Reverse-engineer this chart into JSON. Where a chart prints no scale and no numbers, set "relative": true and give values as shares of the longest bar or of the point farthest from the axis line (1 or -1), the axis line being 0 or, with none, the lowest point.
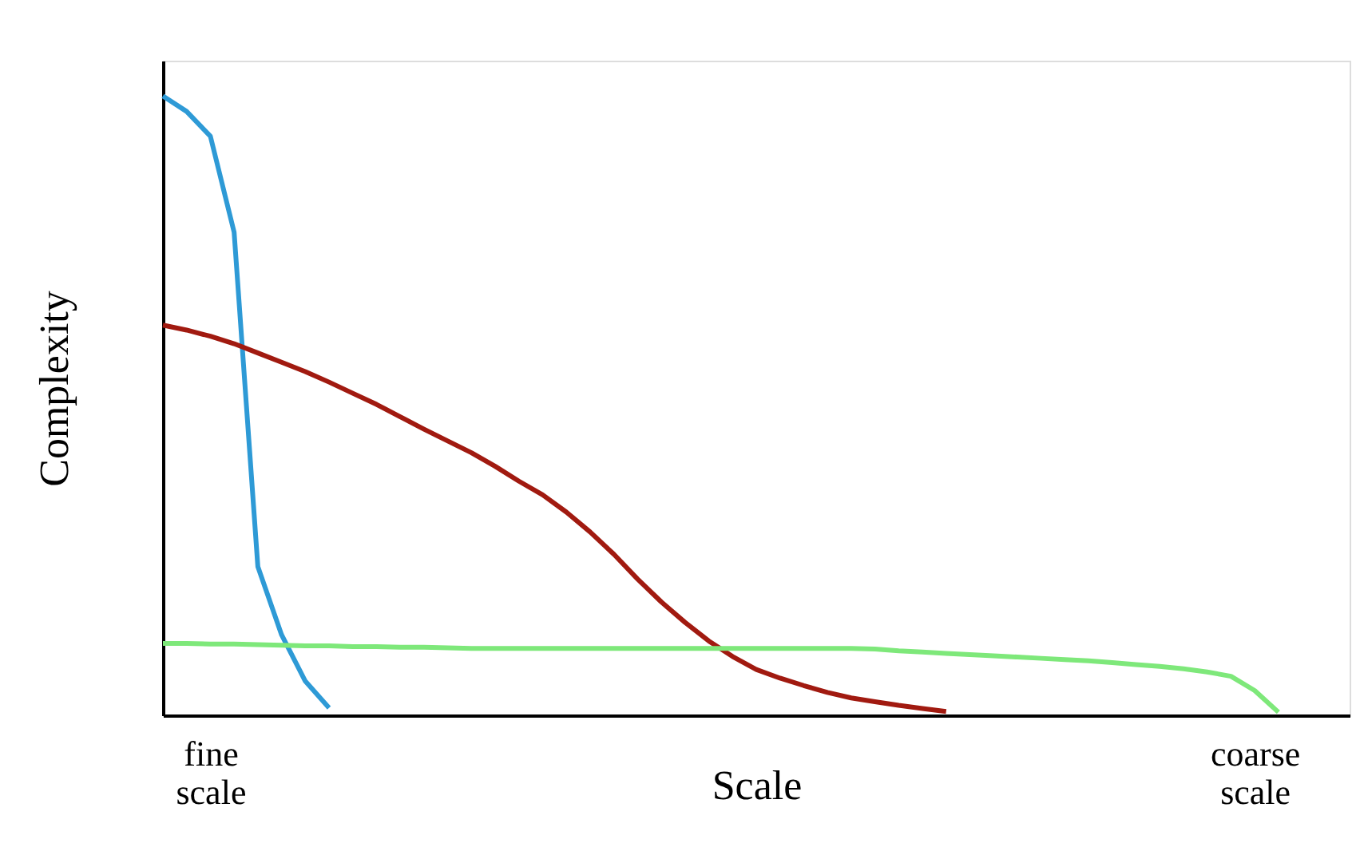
{
  "chart_data": {
    "type": "line",
    "relative": true,
    "xlabel": "Scale",
    "ylabel": "Complexity",
    "legend": false,
    "grid": false,
    "marker": "none",
    "line_style": "solid",
    "categories": [
      null,
      null,
      "fine scale",
      null,
      null,
      null,
      null,
      null,
      null,
      null,
      null,
      null,
      null,
      null,
      null,
      null,
      null,
      null,
      null,
      null,
      null,
      null,
      null,
      null,
      null,
      null,
      null,
      null,
      null,
      null,
      null,
      null,
      null,
      null,
      null,
      null,
      null,
      null,
      null,
      null,
      null,
      null,
      null,
      null,
      null,
      null,
      "coarse scale",
      null,
      null,
      null,
      null
    ],
    "series": [
      {
        "color": "#2e9ad6",
        "values": [
          1.0,
          0.975,
          0.935,
          0.78,
          0.24,
          0.13,
          0.055,
          0.012,
          null,
          null,
          null,
          null,
          null,
          null,
          null,
          null,
          null,
          null,
          null,
          null,
          null,
          null,
          null,
          null,
          null,
          null,
          null,
          null,
          null,
          null,
          null,
          null,
          null,
          null,
          null,
          null,
          null,
          null,
          null,
          null,
          null,
          null,
          null,
          null,
          null,
          null,
          null,
          null,
          null,
          null,
          null
        ]
      },
      {
        "color": "#a11a10",
        "values": [
          0.63,
          0.622,
          0.612,
          0.6,
          0.585,
          0.57,
          0.555,
          0.538,
          0.52,
          0.502,
          0.482,
          0.462,
          0.443,
          0.424,
          0.402,
          0.378,
          0.356,
          0.328,
          0.296,
          0.26,
          0.22,
          0.183,
          0.15,
          0.12,
          0.095,
          0.074,
          0.06,
          0.048,
          0.037,
          0.028,
          0.022,
          0.016,
          0.011,
          0.006,
          null,
          null,
          null,
          null,
          null,
          null,
          null,
          null,
          null,
          null,
          null,
          null,
          null,
          null,
          null,
          null,
          null
        ]
      },
      {
        "color": "#7ee87a",
        "values": [
          0.116,
          0.116,
          0.115,
          0.115,
          0.114,
          0.113,
          0.112,
          0.112,
          0.111,
          0.111,
          0.11,
          0.11,
          0.109,
          0.108,
          0.108,
          0.108,
          0.108,
          0.108,
          0.108,
          0.108,
          0.108,
          0.108,
          0.108,
          0.108,
          0.108,
          0.108,
          0.108,
          0.108,
          0.108,
          0.108,
          0.107,
          0.104,
          0.102,
          0.1,
          0.098,
          0.096,
          0.094,
          0.092,
          0.09,
          0.088,
          0.085,
          0.082,
          0.079,
          0.075,
          0.07,
          0.063,
          0.04,
          0.005,
          null,
          null,
          null
        ]
      }
    ]
  }
}
